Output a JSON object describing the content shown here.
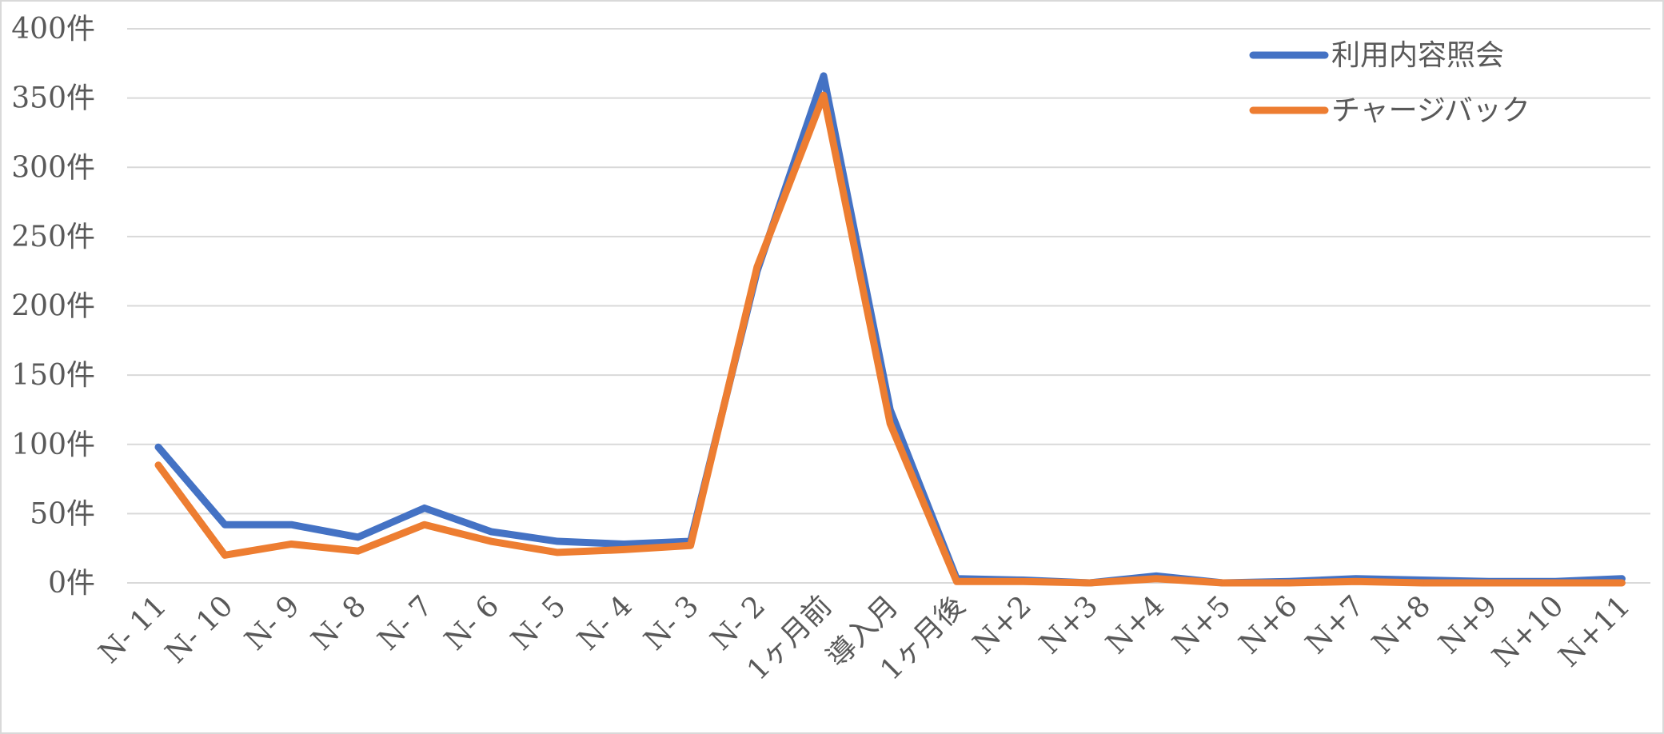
{
  "chart_data": {
    "type": "line",
    "title": "",
    "xlabel": "",
    "ylabel": "",
    "categories": [
      "N- 11",
      "N- 10",
      "N- 9",
      "N- 8",
      "N- 7",
      "N- 6",
      "N- 5",
      "N- 4",
      "N- 3",
      "N- 2",
      "1ヶ月前",
      "導入月",
      "1ヶ月後",
      "N+2",
      "N+3",
      "N+4",
      "N+5",
      "N+6",
      "N+7",
      "N+8",
      "N+9",
      "N+10",
      "N+11"
    ],
    "y_ticks": [
      {
        "value": 0,
        "label": "0件"
      },
      {
        "value": 50,
        "label": "50件"
      },
      {
        "value": 100,
        "label": "100件"
      },
      {
        "value": 150,
        "label": "150件"
      },
      {
        "value": 200,
        "label": "200件"
      },
      {
        "value": 250,
        "label": "250件"
      },
      {
        "value": 300,
        "label": "300件"
      },
      {
        "value": 350,
        "label": "350件"
      },
      {
        "value": 400,
        "label": "400件"
      }
    ],
    "ylim": [
      0,
      400
    ],
    "grid": true,
    "legend_position": "top-right",
    "series": [
      {
        "name": "利用内容照会",
        "color": "#4472C4",
        "values": [
          98,
          42,
          42,
          33,
          54,
          37,
          30,
          28,
          30,
          225,
          366,
          125,
          3,
          2,
          0,
          5,
          0,
          1,
          3,
          2,
          1,
          1,
          3
        ]
      },
      {
        "name": "チャージバック",
        "color": "#ED7D31",
        "values": [
          85,
          20,
          28,
          23,
          42,
          30,
          22,
          24,
          27,
          228,
          352,
          115,
          1,
          1,
          0,
          3,
          0,
          0,
          1,
          0,
          0,
          0,
          0
        ]
      }
    ]
  }
}
